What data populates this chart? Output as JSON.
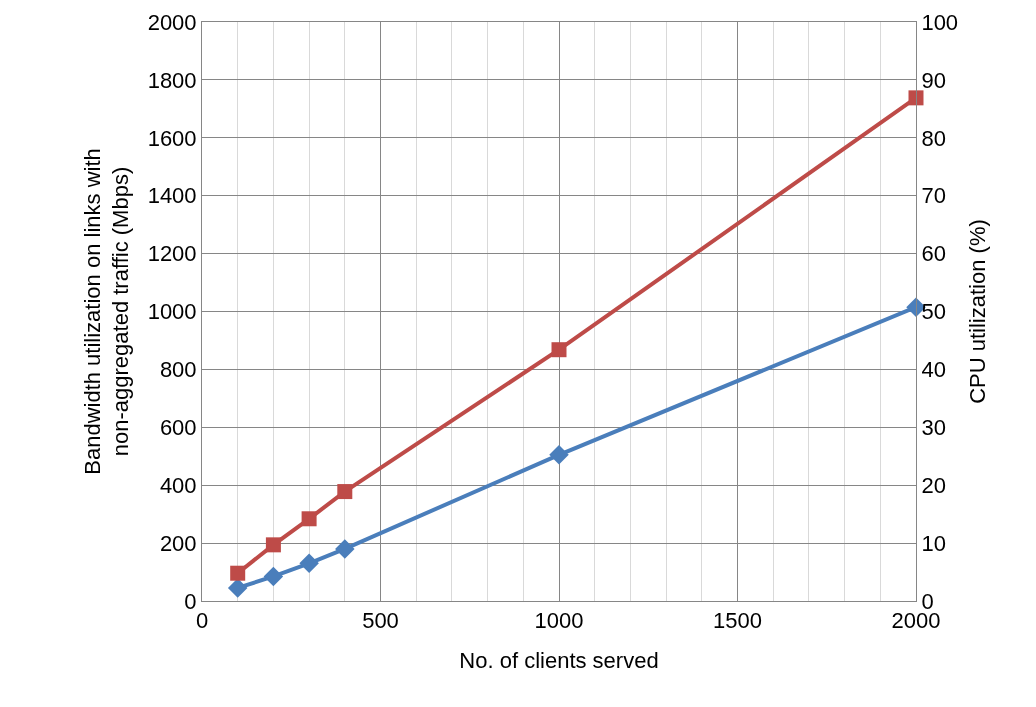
{
  "chart_data": {
    "type": "line",
    "xlabel": "No. of clients served",
    "ylabel": "Bandwidth utilization on links with non-aggregated traffic (Mbps)",
    "y2label": "CPU utilization (%)",
    "x": [
      100,
      200,
      300,
      400,
      1000,
      2000
    ],
    "series": [
      {
        "color": "#4a7ebb",
        "marker": "diamond",
        "values": [
          45,
          85,
          130,
          180,
          505,
          1015
        ]
      },
      {
        "color": "#be4b48",
        "marker": "square",
        "axis": "y2",
        "values": [
          4.8,
          9.7,
          14.2,
          18.9,
          43.4,
          86.9
        ]
      }
    ],
    "xlim": [
      0,
      2000
    ],
    "xticks": [
      0,
      500,
      1000,
      1500,
      2000
    ],
    "ylim": [
      0,
      2000
    ],
    "yticks": [
      0,
      200,
      400,
      600,
      800,
      1000,
      1200,
      1400,
      1600,
      1800,
      2000
    ],
    "y2lim": [
      0,
      100
    ],
    "y2ticks": [
      0,
      10,
      20,
      30,
      40,
      50,
      60,
      70,
      80,
      90,
      100
    ],
    "grid": true,
    "line_style": "solid"
  }
}
